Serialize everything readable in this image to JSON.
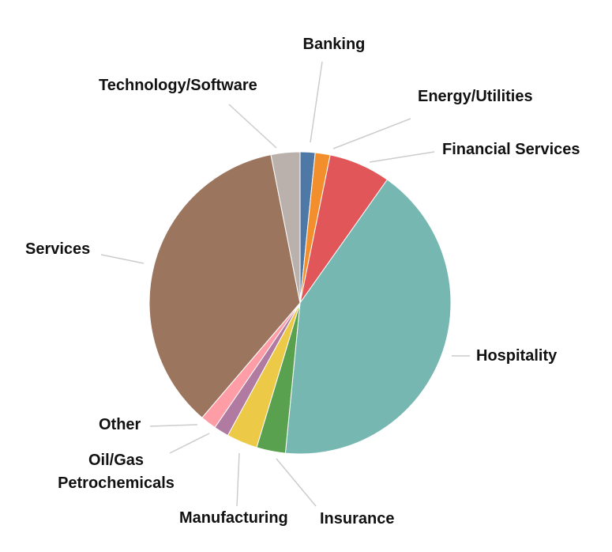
{
  "chart_data": {
    "type": "pie",
    "categories": [
      "Banking",
      "Energy/Utilities",
      "Financial Services",
      "Hospitality",
      "Insurance",
      "Manufacturing",
      "Oil/Gas Petrochemicals",
      "Other",
      "Services",
      "Technology/Software"
    ],
    "values": [
      1.6,
      1.6,
      6.6,
      41.7,
      3.1,
      3.3,
      1.6,
      1.7,
      35.6,
      3.1
    ],
    "colors": [
      "#4e79a7",
      "#f28e2b",
      "#e15759",
      "#76b7b2",
      "#59a14f",
      "#edc948",
      "#b07aa1",
      "#ff9da7",
      "#9c755f",
      "#bab0ac"
    ]
  }
}
